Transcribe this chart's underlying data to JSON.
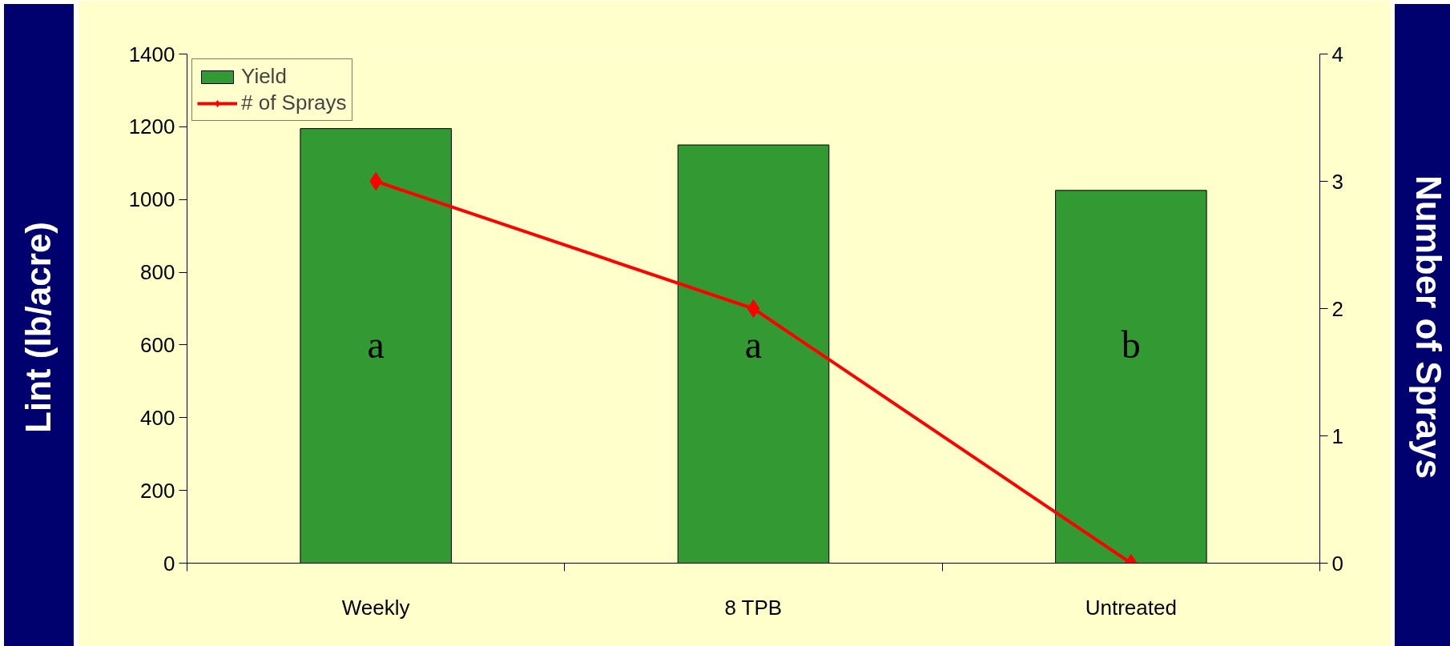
{
  "chart_data": {
    "type": "bar",
    "categories": [
      "Weekly",
      "8 TPB",
      "Untreated"
    ],
    "series": [
      {
        "name": "Yield",
        "color": "#339933",
        "values": [
          1195,
          1150,
          1025
        ]
      },
      {
        "name": "# of Sprays",
        "type": "line",
        "color": "#ff0000",
        "axis": "y2",
        "marker": "diamond",
        "values": [
          3,
          2,
          0
        ]
      }
    ],
    "ylabel": "Lint (lb/acre)",
    "y2label": "Number of Sprays",
    "ylim": [
      0,
      1400
    ],
    "yticks": [
      0,
      200,
      400,
      600,
      800,
      1000,
      1200,
      1400
    ],
    "y2lim": [
      0,
      4
    ],
    "y2ticks": [
      0,
      1,
      2,
      3,
      4
    ],
    "annotations": [
      "a",
      "a",
      "b"
    ],
    "legend": "top left",
    "grid": false
  }
}
